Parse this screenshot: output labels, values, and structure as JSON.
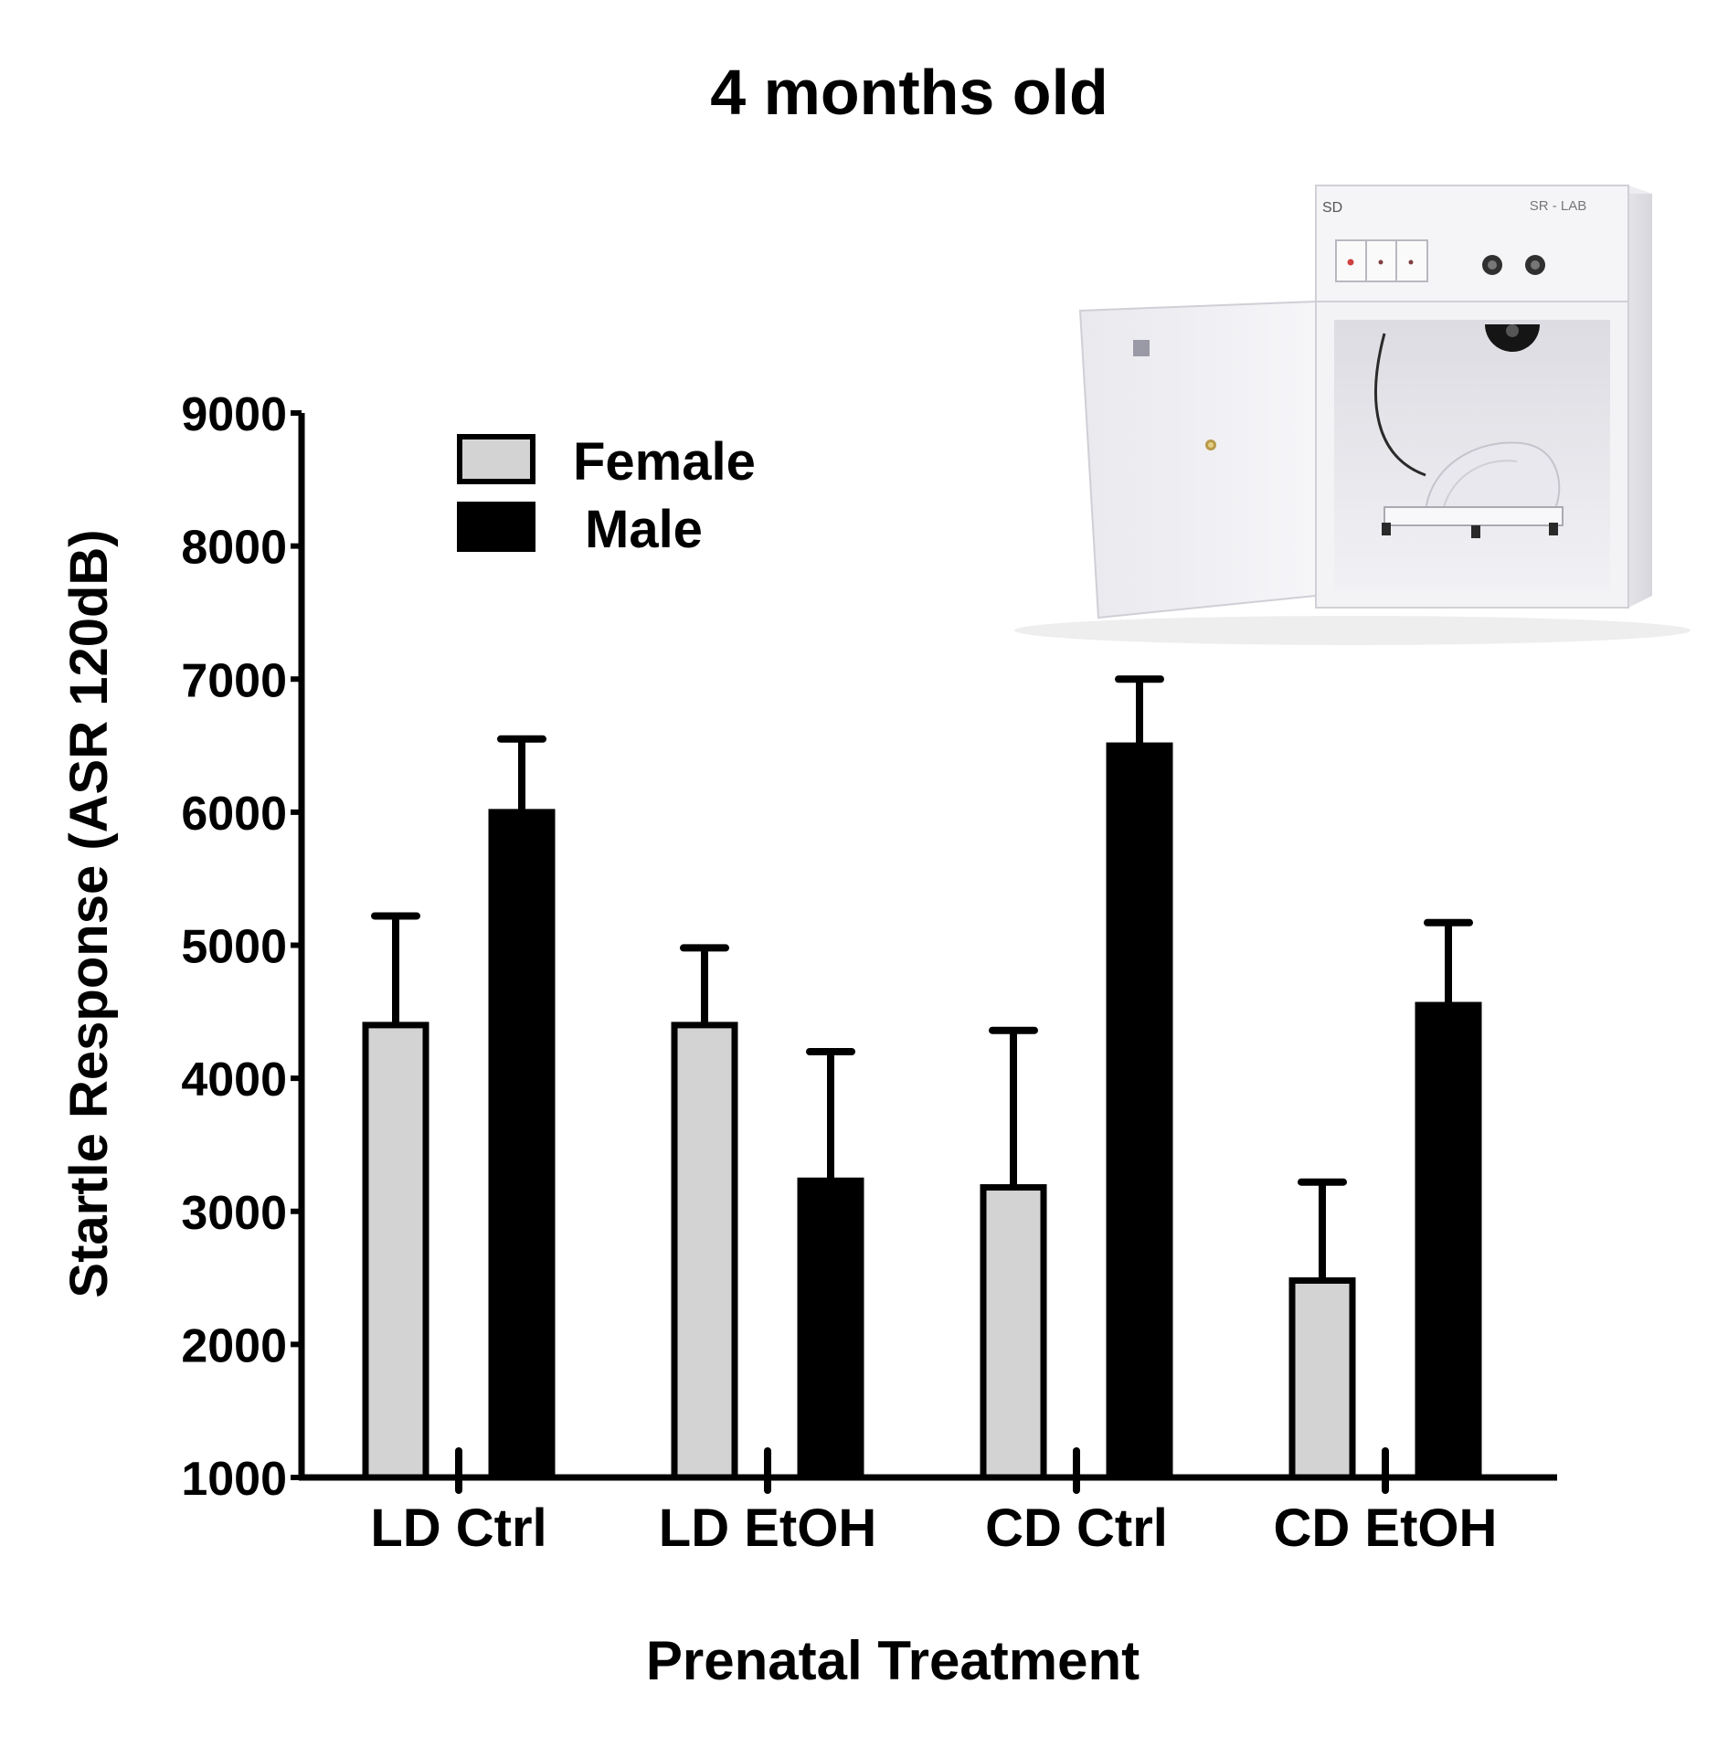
{
  "chart_data": {
    "type": "bar",
    "title": "4 months old",
    "xlabel": "Prenatal Treatment",
    "ylabel": "Startle Response (ASR 120dB)",
    "categories": [
      "LD Ctrl",
      "LD EtOH",
      "CD Ctrl",
      "CD EtOH"
    ],
    "ylim": [
      1000,
      9000
    ],
    "yticks": [
      1000,
      2000,
      3000,
      4000,
      5000,
      6000,
      7000,
      8000,
      9000
    ],
    "ytick_labels": [
      "1000",
      "2000",
      "3000",
      "4000",
      "5000",
      "6000",
      "7000",
      "8000",
      "9000"
    ],
    "grid": false,
    "legend_position": "top-left",
    "series": [
      {
        "name": "Female",
        "color": "#d3d3d3",
        "values": [
          4400,
          4400,
          3180,
          2480
        ],
        "error": [
          820,
          580,
          1180,
          740
        ]
      },
      {
        "name": "Male",
        "color": "#000000",
        "values": [
          6000,
          3230,
          6500,
          4550
        ],
        "error": [
          550,
          970,
          500,
          620
        ]
      }
    ]
  },
  "image": {
    "panel_label": "SR - LAB",
    "logo": "SD"
  }
}
